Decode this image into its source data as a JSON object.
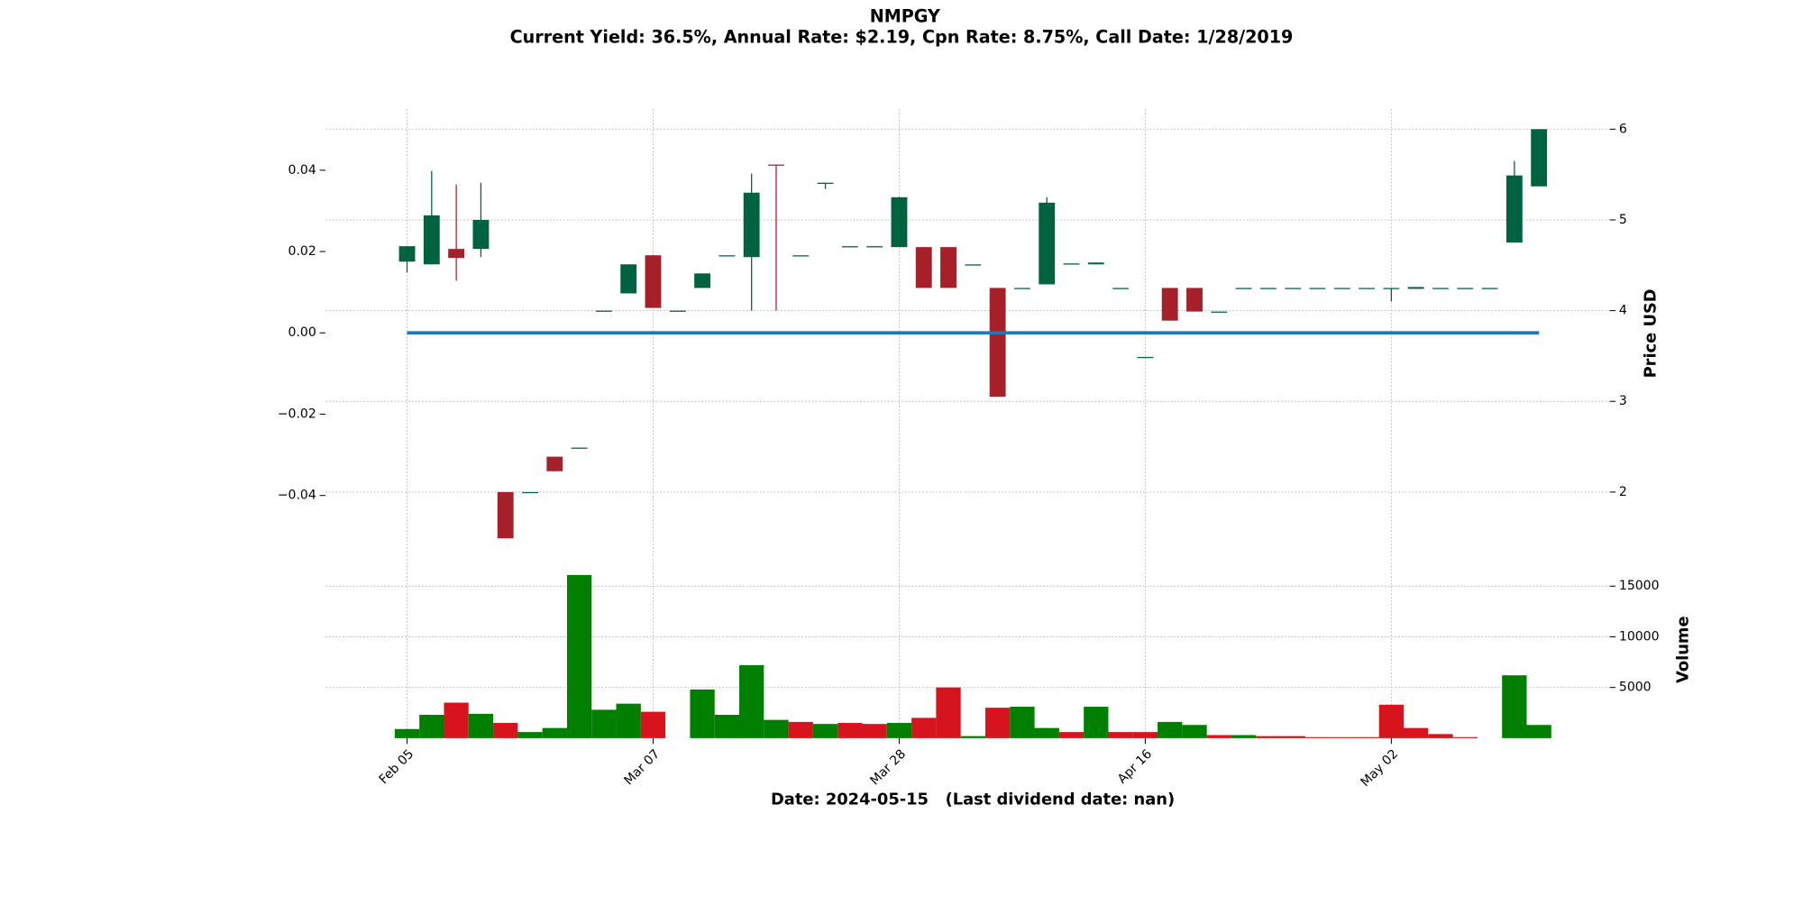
{
  "chart_data": {
    "type": "candlestick",
    "title": "NMPGY",
    "subtitle": "Current Yield: 36.5%, Annual Rate: $2.19, Cpn Rate: 8.75%, Call Date: 1/28/2019",
    "xlabel": "Date: 2024-05-15   (Last dividend date: nan)",
    "ylabel": "Price USD",
    "volume_label": "Volume",
    "categories": [
      "Feb 05",
      null,
      null,
      null,
      null,
      null,
      null,
      null,
      null,
      null,
      "Mar 07",
      null,
      null,
      null,
      null,
      null,
      null,
      null,
      null,
      null,
      "Mar 28",
      null,
      null,
      null,
      null,
      null,
      null,
      null,
      null,
      null,
      "Apr 16",
      null,
      null,
      null,
      null,
      null,
      null,
      null,
      null,
      null,
      "May 02",
      null,
      null,
      null,
      null,
      null,
      null
    ],
    "open": [
      4.54,
      4.51,
      4.68,
      4.68,
      2.0,
      2.0,
      2.39,
      2.49,
      4.0,
      4.19,
      4.61,
      4.0,
      4.25,
      4.61,
      4.59,
      5.61,
      4.61,
      5.41,
      4.71,
      4.71,
      4.7,
      4.7,
      4.7,
      4.51,
      4.25,
      4.25,
      4.29,
      4.52,
      4.51,
      4.25,
      3.49,
      4.25,
      4.25,
      3.99,
      4.25,
      4.25,
      4.25,
      4.25,
      4.25,
      4.25,
      4.25,
      4.24,
      4.25,
      4.25,
      4.25,
      4.75,
      5.37
    ],
    "high": [
      4.71,
      5.54,
      5.39,
      5.41,
      2.0,
      2.0,
      2.39,
      2.49,
      4.0,
      4.51,
      4.61,
      4.0,
      4.41,
      4.61,
      5.51,
      5.61,
      4.61,
      5.41,
      4.71,
      4.71,
      5.25,
      4.7,
      4.7,
      4.51,
      4.25,
      4.25,
      5.25,
      4.52,
      4.53,
      4.25,
      3.49,
      4.25,
      4.25,
      3.99,
      4.25,
      4.25,
      4.25,
      4.25,
      4.25,
      4.25,
      4.25,
      4.26,
      4.25,
      4.25,
      4.25,
      5.65,
      6.0
    ],
    "low": [
      4.42,
      4.51,
      4.33,
      4.59,
      1.49,
      2.0,
      2.23,
      2.49,
      4.0,
      4.19,
      4.03,
      4.0,
      4.25,
      4.61,
      4.0,
      4.0,
      4.61,
      5.34,
      4.71,
      4.71,
      4.7,
      4.25,
      4.25,
      4.51,
      3.05,
      4.25,
      4.29,
      4.52,
      4.51,
      4.25,
      3.49,
      3.89,
      3.99,
      3.99,
      4.25,
      4.25,
      4.25,
      4.25,
      4.25,
      4.25,
      4.1,
      4.24,
      4.25,
      4.25,
      4.25,
      4.75,
      5.37
    ],
    "close": [
      4.71,
      5.05,
      4.58,
      5.0,
      1.49,
      2.0,
      2.23,
      2.49,
      4.0,
      4.51,
      4.03,
      4.0,
      4.41,
      4.61,
      5.3,
      5.6,
      4.61,
      5.41,
      4.71,
      4.71,
      5.25,
      4.25,
      4.25,
      4.51,
      3.05,
      4.25,
      5.19,
      4.52,
      4.53,
      4.25,
      3.49,
      3.89,
      3.99,
      3.99,
      4.25,
      4.25,
      4.25,
      4.25,
      4.25,
      4.25,
      4.25,
      4.26,
      4.25,
      4.25,
      4.25,
      5.49,
      6.0
    ],
    "up_color": "#006340",
    "down_color": "#a52029",
    "volume": [
      900,
      2300,
      3500,
      2400,
      1500,
      600,
      1000,
      16100,
      2800,
      3400,
      2600,
      0,
      4800,
      2300,
      7200,
      1800,
      1600,
      1400,
      1500,
      1400,
      1500,
      2000,
      5000,
      200,
      3000,
      3100,
      1000,
      600,
      3100,
      600,
      600,
      1600,
      1300,
      300,
      300,
      200,
      200,
      100,
      100,
      100,
      3300,
      1000,
      400,
      100,
      0,
      6200,
      1300
    ],
    "volume_colors": [
      "#007f00",
      "#007f00",
      "#d7141e",
      "#007f00",
      "#d7141e",
      "#007f00",
      "#007f00",
      "#007f00",
      "#007f00",
      "#007f00",
      "#d7141e",
      "#007f00",
      "#007f00",
      "#007f00",
      "#007f00",
      "#007f00",
      "#d7141e",
      "#007f00",
      "#d7141e",
      "#d7141e",
      "#007f00",
      "#d7141e",
      "#d7141e",
      "#007f00",
      "#d7141e",
      "#007f00",
      "#007f00",
      "#d7141e",
      "#007f00",
      "#d7141e",
      "#d7141e",
      "#007f00",
      "#007f00",
      "#d7141e",
      "#007f00",
      "#d7141e",
      "#d7141e",
      "#d7141e",
      "#d7141e",
      "#d7141e",
      "#d7141e",
      "#d7141e",
      "#d7141e",
      "#d7141e",
      "#d7141e",
      "#007f00",
      "#007f00"
    ],
    "line": {
      "color": "#1f77b4",
      "values": [
        0,
        0,
        0,
        0,
        0,
        0,
        0,
        0,
        0,
        0,
        0,
        0,
        0,
        0,
        0,
        0,
        0,
        0,
        0,
        0,
        0,
        0,
        0,
        0,
        0,
        0,
        0,
        0,
        0,
        0,
        0,
        0,
        0,
        0,
        0,
        0,
        0,
        0,
        0,
        0,
        0,
        0,
        0,
        0,
        0,
        0,
        0
      ]
    },
    "ylim": [
      -0.055,
      0.055
    ],
    "yticks": [
      {
        "value": -0.04,
        "label": "−0.04"
      },
      {
        "value": -0.02,
        "label": "−0.02"
      },
      {
        "value": 0,
        "label": "0.00"
      },
      0.02,
      0.04
    ],
    "y2lim": [
      1.29,
      6.22
    ],
    "y2ticks": [
      2,
      3,
      4,
      5,
      6
    ],
    "volume_lim": [
      0,
      17700
    ],
    "volume_ticks": [
      5000,
      10000,
      15000
    ],
    "grid": true
  }
}
